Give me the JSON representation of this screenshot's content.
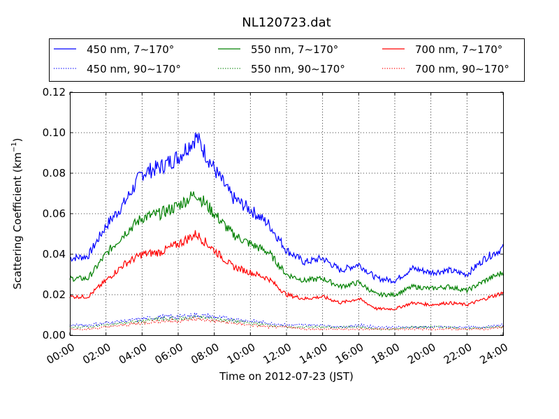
{
  "chart_data": {
    "type": "line",
    "title": "NL120723.dat",
    "xlabel": "Time on 2012-07-23 (JST)",
    "ylabel": "Scattering Coefficient (km",
    "ylabel_sup": "−1",
    "ylabel_end": ")",
    "xlim": [
      "00:00",
      "24:00"
    ],
    "ylim": [
      0.0,
      0.12
    ],
    "grid": true,
    "legend_position": "top",
    "x_ticks": [
      "00:00",
      "02:00",
      "04:00",
      "06:00",
      "08:00",
      "10:00",
      "12:00",
      "14:00",
      "16:00",
      "18:00",
      "20:00",
      "22:00",
      "24:00"
    ],
    "y_ticks": [
      "0.00",
      "0.02",
      "0.04",
      "0.06",
      "0.08",
      "0.10",
      "0.12"
    ],
    "x_hours": [
      0,
      1,
      2,
      3,
      4,
      5,
      6,
      7,
      8,
      9,
      10,
      11,
      12,
      13,
      14,
      15,
      16,
      17,
      18,
      19,
      20,
      21,
      22,
      23,
      24
    ],
    "series": [
      {
        "name": "450 nm, 7∼170°",
        "color": "#0000ff",
        "style": "solid",
        "values": [
          0.038,
          0.039,
          0.054,
          0.065,
          0.08,
          0.083,
          0.088,
          0.098,
          0.082,
          0.068,
          0.062,
          0.055,
          0.042,
          0.036,
          0.038,
          0.032,
          0.035,
          0.028,
          0.027,
          0.033,
          0.031,
          0.032,
          0.03,
          0.038,
          0.043
        ]
      },
      {
        "name": "550 nm, 7∼170°",
        "color": "#008000",
        "style": "solid",
        "values": [
          0.028,
          0.028,
          0.04,
          0.05,
          0.058,
          0.06,
          0.064,
          0.07,
          0.06,
          0.05,
          0.045,
          0.041,
          0.03,
          0.027,
          0.028,
          0.024,
          0.026,
          0.02,
          0.02,
          0.024,
          0.023,
          0.024,
          0.022,
          0.027,
          0.031
        ]
      },
      {
        "name": "700 nm, 7∼170°",
        "color": "#ff0000",
        "style": "solid",
        "values": [
          0.019,
          0.019,
          0.027,
          0.035,
          0.04,
          0.041,
          0.045,
          0.05,
          0.042,
          0.034,
          0.031,
          0.028,
          0.02,
          0.018,
          0.019,
          0.016,
          0.018,
          0.013,
          0.013,
          0.016,
          0.015,
          0.016,
          0.015,
          0.018,
          0.021
        ]
      },
      {
        "name": "450 nm, 90∼170°",
        "color": "#0000ff",
        "style": "dotted",
        "values": [
          0.005,
          0.005,
          0.006,
          0.007,
          0.008,
          0.009,
          0.009,
          0.01,
          0.009,
          0.008,
          0.007,
          0.006,
          0.005,
          0.005,
          0.005,
          0.004,
          0.005,
          0.004,
          0.004,
          0.004,
          0.004,
          0.004,
          0.004,
          0.004,
          0.005
        ]
      },
      {
        "name": "550 nm, 90∼170°",
        "color": "#008000",
        "style": "dotted",
        "values": [
          0.004,
          0.004,
          0.005,
          0.006,
          0.007,
          0.008,
          0.008,
          0.009,
          0.008,
          0.007,
          0.006,
          0.005,
          0.004,
          0.004,
          0.004,
          0.004,
          0.004,
          0.003,
          0.003,
          0.004,
          0.004,
          0.004,
          0.003,
          0.004,
          0.004
        ]
      },
      {
        "name": "700 nm, 90∼170°",
        "color": "#ff0000",
        "style": "dotted",
        "values": [
          0.003,
          0.003,
          0.004,
          0.005,
          0.006,
          0.007,
          0.007,
          0.008,
          0.007,
          0.006,
          0.005,
          0.004,
          0.004,
          0.003,
          0.003,
          0.003,
          0.003,
          0.003,
          0.003,
          0.003,
          0.003,
          0.003,
          0.003,
          0.003,
          0.004
        ]
      }
    ]
  }
}
